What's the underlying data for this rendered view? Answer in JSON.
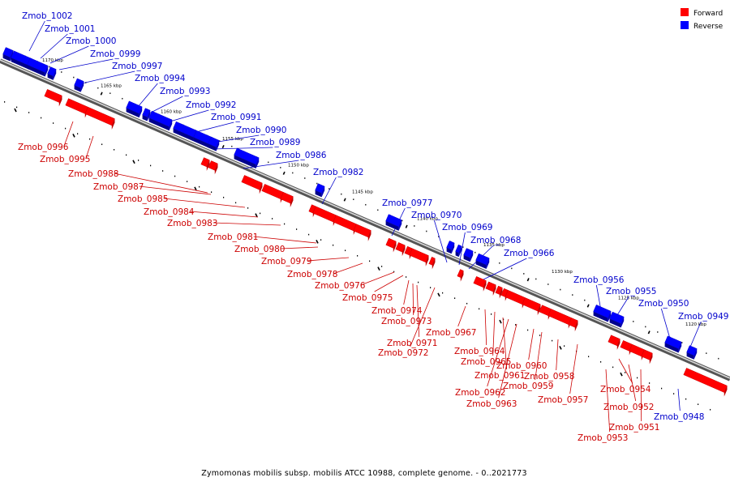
{
  "caption": "Zymomonas mobilis subsp. mobilis ATCC 10988, complete genome. - 0..2021773",
  "legend": {
    "forward": {
      "label": "Forward",
      "color": "#ff0000"
    },
    "reverse": {
      "label": "Reverse",
      "color": "#0000ff"
    }
  },
  "ticks": [
    "1170 kbp",
    "1165 kbp",
    "1160 kbp",
    "1155 kbp",
    "1150 kbp",
    "1145 kbp",
    "1140 kbp",
    "1135 kbp",
    "1130 kbp",
    "1125 kbp",
    "1120 kbp"
  ],
  "reverse_labels": [
    "Zmob_1002",
    "Zmob_1001",
    "Zmob_1000",
    "Zmob_0999",
    "Zmob_0997",
    "Zmob_0994",
    "Zmob_0993",
    "Zmob_0992",
    "Zmob_0991",
    "Zmob_0990",
    "Zmob_0989",
    "Zmob_0986",
    "Zmob_0982",
    "Zmob_0977",
    "Zmob_0970",
    "Zmob_0969",
    "Zmob_0968",
    "Zmob_0966",
    "Zmob_0956",
    "Zmob_0955",
    "Zmob_0950",
    "Zmob_0949",
    "Zmob_0948"
  ],
  "forward_labels": [
    "Zmob_0996",
    "Zmob_0995",
    "Zmob_0988",
    "Zmob_0987",
    "Zmob_0985",
    "Zmob_0984",
    "Zmob_0983",
    "Zmob_0981",
    "Zmob_0980",
    "Zmob_0979",
    "Zmob_0978",
    "Zmob_0976",
    "Zmob_0975",
    "Zmob_0974",
    "Zmob_0973",
    "Zmob_0971",
    "Zmob_0972",
    "Zmob_0967",
    "Zmob_0964",
    "Zmob_0965",
    "Zmob_0961",
    "Zmob_0962",
    "Zmob_0963",
    "Zmob_0960",
    "Zmob_0959",
    "Zmob_0958",
    "Zmob_0957",
    "Zmob_0954",
    "Zmob_0952",
    "Zmob_0951",
    "Zmob_0953"
  ]
}
